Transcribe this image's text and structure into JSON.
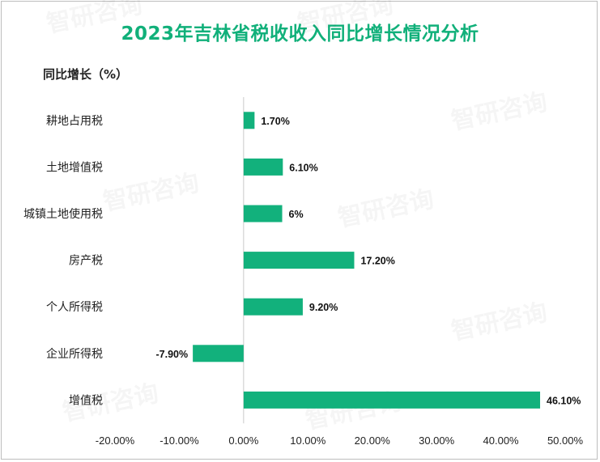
{
  "chart_data": {
    "type": "bar",
    "orientation": "horizontal",
    "title": "2023年吉林省税收收入同比增长情况分析",
    "ylabel": "同比增长（%）",
    "xlabel": "",
    "categories": [
      "耕地占用税",
      "土地增值税",
      "城镇土地使用税",
      "房产税",
      "个人所得税",
      "企业所得税",
      "增值税"
    ],
    "values": [
      1.7,
      6.1,
      6,
      17.2,
      9.2,
      -7.9,
      46.1
    ],
    "value_labels": [
      "1.70%",
      "6.10%",
      "6%",
      "17.20%",
      "9.20%",
      "-7.90%",
      "46.10%"
    ],
    "xlim": [
      -20,
      50
    ],
    "x_ticks": [
      -20,
      -10,
      0,
      10,
      20,
      30,
      40,
      50
    ],
    "x_tick_labels": [
      "-20.00%",
      "-10.00%",
      "0.00%",
      "10.00%",
      "20.00%",
      "30.00%",
      "40.00%",
      "50.00%"
    ],
    "grid": false,
    "bar_color": "#12b17c"
  },
  "watermark": "智研咨询"
}
